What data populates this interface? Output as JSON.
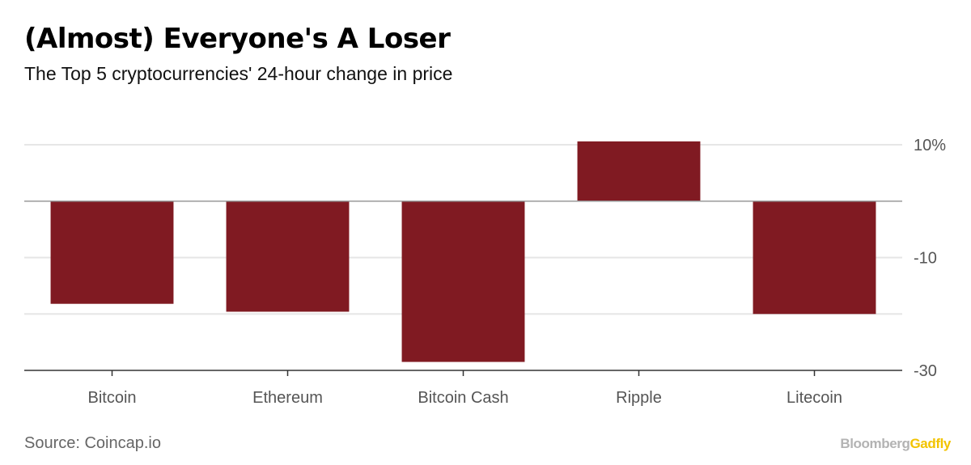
{
  "header": {
    "title": "(Almost) Everyone's A Loser",
    "subtitle": "The Top 5 cryptocurrencies' 24-hour change in price"
  },
  "footer": {
    "source": "Source: Coincap.io",
    "brand_primary": "Bloomberg",
    "brand_secondary": "Gadfly"
  },
  "colors": {
    "bar": "#801a22",
    "grid": "#e6e6e6",
    "zero_line": "#999999",
    "axis": "#333333",
    "brand_secondary": "#f2c300"
  },
  "chart_data": {
    "type": "bar",
    "categories": [
      "Bitcoin",
      "Ethereum",
      "Bitcoin Cash",
      "Ripple",
      "Litecoin"
    ],
    "values": [
      -18.2,
      -19.6,
      -28.5,
      10.6,
      -20.0
    ],
    "ylim": [
      -30,
      10
    ],
    "yticks": [
      10,
      -10,
      -30
    ],
    "ytick_labels": [
      "10%",
      "-10",
      "-30"
    ],
    "grid": true,
    "y_axis_position": "right"
  }
}
